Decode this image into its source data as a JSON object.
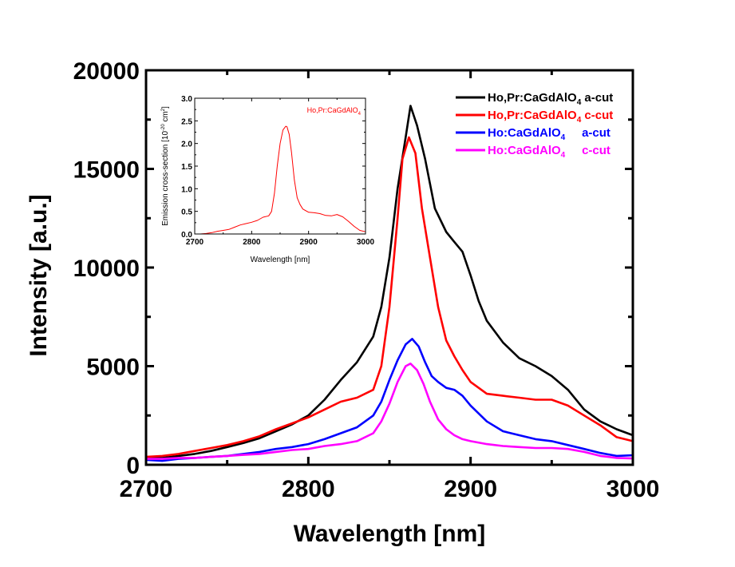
{
  "chart_data": [
    {
      "id": "main",
      "type": "line",
      "title": "",
      "xlabel": "Wavelength [nm]",
      "ylabel": "Intensity [a.u.]",
      "xlim": [
        2700,
        3000
      ],
      "ylim": [
        0,
        20000
      ],
      "xticks": [
        2700,
        2800,
        2900,
        3000
      ],
      "xtick_labels": [
        "2700",
        "2800",
        "2900",
        "3000"
      ],
      "yticks": [
        0,
        5000,
        10000,
        15000,
        20000
      ],
      "ytick_labels": [
        "0",
        "5000",
        "10000",
        "15000",
        "20000"
      ],
      "x_minor_step": 50,
      "y_minor_step": 2500,
      "grid": false,
      "legend_position": "top-right",
      "series": [
        {
          "name": "Ho,Pr:CaGdAlO4 a-cut",
          "label_main": "Ho,Pr:CaGdAlO",
          "label_sub": "4",
          "label_suffix": " a-cut",
          "color": "#000000",
          "x": [
            2700,
            2710,
            2720,
            2730,
            2740,
            2750,
            2760,
            2770,
            2780,
            2790,
            2800,
            2810,
            2820,
            2830,
            2840,
            2845,
            2850,
            2855,
            2860,
            2863,
            2867,
            2872,
            2878,
            2885,
            2890,
            2895,
            2900,
            2905,
            2910,
            2920,
            2930,
            2940,
            2950,
            2960,
            2970,
            2980,
            2990,
            3000
          ],
          "y": [
            400,
            350,
            450,
            550,
            700,
            900,
            1100,
            1350,
            1700,
            2050,
            2500,
            3300,
            4300,
            5200,
            6500,
            8000,
            10500,
            14000,
            16600,
            18200,
            17200,
            15500,
            13000,
            11800,
            11300,
            10800,
            9600,
            8300,
            7300,
            6200,
            5400,
            5000,
            4500,
            3800,
            2800,
            2200,
            1800,
            1500
          ]
        },
        {
          "name": "Ho,Pr:CaGdAlO4 c-cut",
          "label_main": "Ho,Pr:CaGdAlO",
          "label_sub": "4",
          "label_suffix": " c-cut",
          "color": "#ff0000",
          "x": [
            2700,
            2710,
            2720,
            2730,
            2740,
            2750,
            2760,
            2770,
            2780,
            2790,
            2800,
            2810,
            2820,
            2830,
            2840,
            2845,
            2850,
            2855,
            2858,
            2862,
            2866,
            2870,
            2875,
            2880,
            2885,
            2890,
            2895,
            2900,
            2910,
            2920,
            2930,
            2940,
            2950,
            2960,
            2970,
            2980,
            2990,
            3000
          ],
          "y": [
            400,
            450,
            550,
            700,
            850,
            1000,
            1200,
            1450,
            1800,
            2100,
            2400,
            2800,
            3200,
            3400,
            3800,
            5000,
            8000,
            12500,
            15500,
            16600,
            15800,
            13000,
            10500,
            8000,
            6300,
            5500,
            4800,
            4200,
            3600,
            3500,
            3400,
            3300,
            3300,
            3000,
            2500,
            2000,
            1400,
            1200
          ]
        },
        {
          "name": "Ho:CaGdAlO4 a-cut",
          "label_main": "Ho:CaGdAlO",
          "label_sub": "4",
          "label_suffix": "     a-cut",
          "color": "#0000ff",
          "x": [
            2700,
            2710,
            2720,
            2730,
            2740,
            2750,
            2760,
            2770,
            2780,
            2790,
            2800,
            2810,
            2820,
            2830,
            2840,
            2845,
            2850,
            2855,
            2860,
            2864,
            2868,
            2872,
            2876,
            2880,
            2885,
            2890,
            2895,
            2900,
            2910,
            2920,
            2930,
            2940,
            2950,
            2960,
            2970,
            2980,
            2990,
            3000
          ],
          "y": [
            250,
            200,
            300,
            350,
            400,
            450,
            550,
            650,
            800,
            900,
            1050,
            1300,
            1600,
            1900,
            2500,
            3200,
            4300,
            5300,
            6100,
            6380,
            6000,
            5200,
            4500,
            4200,
            3900,
            3800,
            3500,
            3000,
            2200,
            1700,
            1500,
            1300,
            1200,
            1000,
            800,
            600,
            450,
            480
          ]
        },
        {
          "name": "Ho:CaGdAlO4 c-cut",
          "label_main": "Ho:CaGdAlO",
          "label_sub": "4",
          "label_suffix": "     c-cut",
          "color": "#ff00ff",
          "x": [
            2700,
            2710,
            2720,
            2730,
            2740,
            2750,
            2760,
            2770,
            2780,
            2790,
            2800,
            2810,
            2820,
            2830,
            2840,
            2845,
            2850,
            2855,
            2860,
            2863,
            2867,
            2871,
            2875,
            2880,
            2885,
            2890,
            2895,
            2900,
            2910,
            2920,
            2930,
            2940,
            2950,
            2960,
            2970,
            2980,
            2990,
            3000
          ],
          "y": [
            300,
            300,
            350,
            350,
            400,
            450,
            500,
            550,
            650,
            750,
            800,
            950,
            1050,
            1200,
            1600,
            2200,
            3100,
            4200,
            5000,
            5130,
            4800,
            4100,
            3200,
            2300,
            1800,
            1500,
            1300,
            1200,
            1050,
            950,
            900,
            850,
            850,
            800,
            650,
            450,
            350,
            320
          ]
        }
      ]
    },
    {
      "id": "inset",
      "type": "line",
      "title": "",
      "annotation": "Ho,Pr:CaGdAlO4",
      "annotation_main": "Ho,Pr:CaGdAlO",
      "annotation_sub": "4",
      "xlabel": "Wavelength [nm]",
      "ylabel_main": "Emission cross-section [10",
      "ylabel_sup1": "-20",
      "ylabel_mid": " cm",
      "ylabel_sup2": "2",
      "ylabel_end": "]",
      "xlim": [
        2700,
        3000
      ],
      "ylim": [
        0.0,
        3.0
      ],
      "xticks": [
        2700,
        2800,
        2900,
        3000
      ],
      "xtick_labels": [
        "2700",
        "2800",
        "2900",
        "3000"
      ],
      "yticks": [
        0.0,
        0.5,
        1.0,
        1.5,
        2.0,
        2.5,
        3.0
      ],
      "ytick_labels": [
        "0.0",
        "0.5",
        "1.0",
        "1.5",
        "2.0",
        "2.5",
        "3.0"
      ],
      "grid": false,
      "series": [
        {
          "name": "Ho,Pr:CaGdAlO4",
          "color": "#ff0000",
          "x": [
            2700,
            2710,
            2720,
            2730,
            2740,
            2750,
            2760,
            2770,
            2780,
            2790,
            2800,
            2810,
            2820,
            2830,
            2835,
            2840,
            2845,
            2850,
            2855,
            2860,
            2862,
            2866,
            2870,
            2875,
            2880,
            2885,
            2890,
            2900,
            2910,
            2920,
            2930,
            2940,
            2950,
            2960,
            2970,
            2980,
            2990,
            3000
          ],
          "y": [
            0.0,
            0.0,
            0.01,
            0.03,
            0.06,
            0.08,
            0.1,
            0.15,
            0.2,
            0.23,
            0.26,
            0.3,
            0.37,
            0.4,
            0.5,
            0.9,
            1.5,
            2.0,
            2.3,
            2.38,
            2.37,
            2.2,
            1.8,
            1.2,
            0.8,
            0.65,
            0.55,
            0.48,
            0.47,
            0.45,
            0.41,
            0.4,
            0.43,
            0.38,
            0.28,
            0.17,
            0.08,
            0.05
          ]
        }
      ]
    }
  ]
}
